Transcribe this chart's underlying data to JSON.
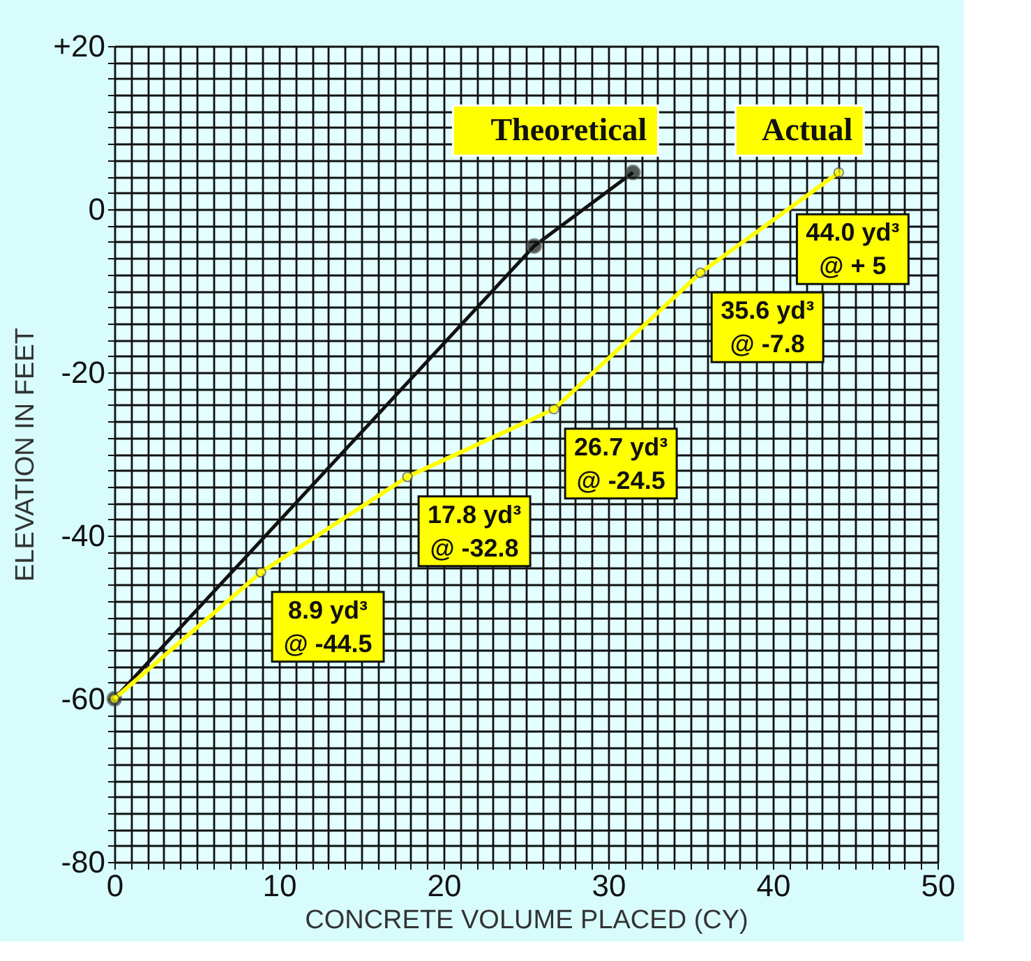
{
  "chart_data": {
    "type": "line",
    "xlabel": "CONCRETE VOLUME PLACED (CY)",
    "ylabel": "ELEVATION IN FEET",
    "series": [
      {
        "name": "Theoretical",
        "color": "#111111",
        "x": [
          0,
          25.5,
          31.5
        ],
        "values": [
          -60,
          -4.5,
          4.5
        ]
      },
      {
        "name": "Actual",
        "color": "#ffff00",
        "x": [
          0,
          8.9,
          17.8,
          26.7,
          35.6,
          44.0
        ],
        "values": [
          -60,
          -44.5,
          -32.8,
          -24.5,
          -7.8,
          4.5
        ]
      }
    ],
    "annotations": [
      {
        "text": "8.9 yd³\n@ -44.5",
        "x": 8.9,
        "y": -44.5
      },
      {
        "text": "17.8 yd³\n@ -32.8",
        "x": 17.8,
        "y": -32.8
      },
      {
        "text": "26.7 yd³\n@ -24.5",
        "x": 26.7,
        "y": -24.5
      },
      {
        "text": "35.6 yd³\n@ -7.8",
        "x": 35.6,
        "y": -7.8
      },
      {
        "text": "44.0 yd³\n@ + 5",
        "x": 44.0,
        "y": 4.5
      }
    ],
    "xlim": [
      0,
      50
    ],
    "ylim": [
      -80,
      20
    ],
    "xticks": [
      0,
      {
        "value": 1,
        "label": null
      },
      {
        "value": 2,
        "label": null
      },
      {
        "value": 3,
        "label": null
      },
      {
        "value": 4,
        "label": null
      },
      {
        "value": 5,
        "label": null
      },
      {
        "value": 6,
        "label": null
      },
      {
        "value": 7,
        "label": null
      },
      {
        "value": 8,
        "label": null
      },
      {
        "value": 9,
        "label": null
      },
      10,
      {
        "value": 11,
        "label": null
      },
      {
        "value": 12,
        "label": null
      },
      {
        "value": 13,
        "label": null
      },
      {
        "value": 14,
        "label": null
      },
      {
        "value": 15,
        "label": null
      },
      {
        "value": 16,
        "label": null
      },
      {
        "value": 17,
        "label": null
      },
      {
        "value": 18,
        "label": null
      },
      {
        "value": 19,
        "label": null
      },
      20,
      {
        "value": 21,
        "label": null
      },
      {
        "value": 22,
        "label": null
      },
      {
        "value": 23,
        "label": null
      },
      {
        "value": 24,
        "label": null
      },
      {
        "value": 25,
        "label": null
      },
      {
        "value": 26,
        "label": null
      },
      {
        "value": 27,
        "label": null
      },
      {
        "value": 28,
        "label": null
      },
      {
        "value": 29,
        "label": null
      },
      30,
      {
        "value": 31,
        "label": null
      },
      {
        "value": 32,
        "label": null
      },
      {
        "value": 33,
        "label": null
      },
      {
        "value": 34,
        "label": null
      },
      {
        "value": 35,
        "label": null
      },
      {
        "value": 36,
        "label": null
      },
      {
        "value": 37,
        "label": null
      },
      {
        "value": 38,
        "label": null
      },
      {
        "value": 39,
        "label": null
      },
      40,
      {
        "value": 41,
        "label": null
      },
      {
        "value": 42,
        "label": null
      },
      {
        "value": 43,
        "label": null
      },
      {
        "value": 44,
        "label": null
      },
      {
        "value": 45,
        "label": null
      },
      {
        "value": 46,
        "label": null
      },
      {
        "value": 47,
        "label": null
      },
      {
        "value": 48,
        "label": null
      },
      {
        "value": 49,
        "label": null
      },
      50
    ],
    "yticks": [
      -80,
      {
        "value": -78,
        "label": null
      },
      {
        "value": -76,
        "label": null
      },
      {
        "value": -74,
        "label": null
      },
      {
        "value": -72,
        "label": null
      },
      {
        "value": -70,
        "label": null
      },
      {
        "value": -68,
        "label": null
      },
      {
        "value": -66,
        "label": null
      },
      {
        "value": -64,
        "label": null
      },
      {
        "value": -62,
        "label": null
      },
      -60,
      {
        "value": -58,
        "label": null
      },
      {
        "value": -56,
        "label": null
      },
      {
        "value": -54,
        "label": null
      },
      {
        "value": -52,
        "label": null
      },
      {
        "value": -50,
        "label": null
      },
      {
        "value": -48,
        "label": null
      },
      {
        "value": -46,
        "label": null
      },
      {
        "value": -44,
        "label": null
      },
      {
        "value": -42,
        "label": null
      },
      -40,
      {
        "value": -38,
        "label": null
      },
      {
        "value": -36,
        "label": null
      },
      {
        "value": -34,
        "label": null
      },
      {
        "value": -32,
        "label": null
      },
      {
        "value": -30,
        "label": null
      },
      {
        "value": -28,
        "label": null
      },
      {
        "value": -26,
        "label": null
      },
      {
        "value": -24,
        "label": null
      },
      {
        "value": -22,
        "label": null
      },
      -20,
      {
        "value": -18,
        "label": null
      },
      {
        "value": -16,
        "label": null
      },
      {
        "value": -14,
        "label": null
      },
      {
        "value": -12,
        "label": null
      },
      {
        "value": -10,
        "label": null
      },
      {
        "value": -8,
        "label": null
      },
      {
        "value": -6,
        "label": null
      },
      {
        "value": -4,
        "label": null
      },
      {
        "value": -2,
        "label": null
      },
      0,
      {
        "value": 2,
        "label": null
      },
      {
        "value": 4,
        "label": null
      },
      {
        "value": 6,
        "label": null
      },
      {
        "value": 8,
        "label": null
      },
      {
        "value": 10,
        "label": null
      },
      {
        "value": 12,
        "label": null
      },
      {
        "value": 14,
        "label": null
      },
      {
        "value": 16,
        "label": null
      },
      {
        "value": 18,
        "label": null
      },
      {
        "value": 20,
        "label": "+20"
      }
    ],
    "grid": true,
    "marker": "circle",
    "line_style": "solid"
  }
}
